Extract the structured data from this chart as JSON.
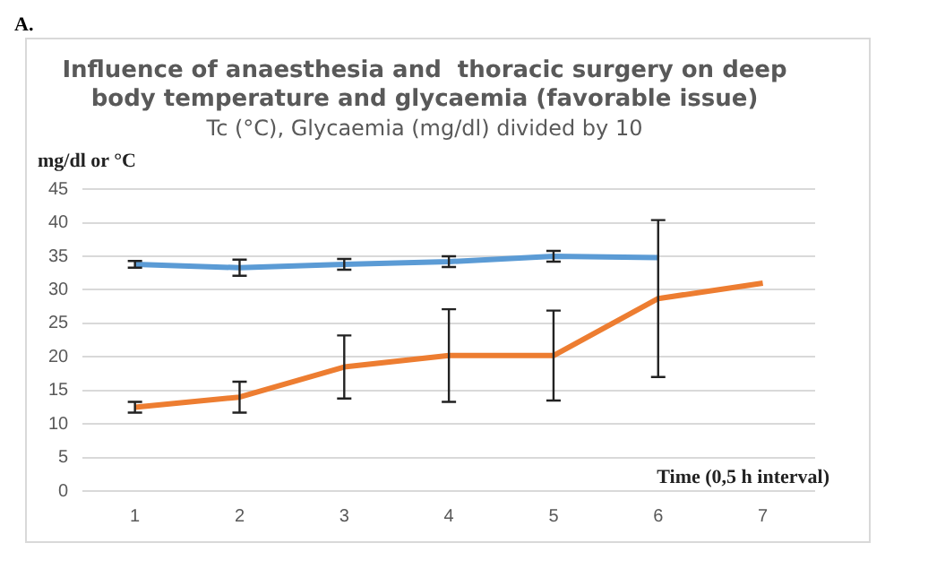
{
  "chart_data": {
    "type": "line",
    "title": [
      "Influence of anaesthesia and  thoracic surgery on deep",
      "body temperature and glycaemia (favorable issue)"
    ],
    "subtitle": "Tc (°C), Glycaemia (mg/dl) divided by 10",
    "annotations": [
      "A."
    ],
    "ylabel": "mg/dl or °C",
    "xlabel": "Time (0,5 h interval)",
    "categories": [
      "1",
      "2",
      "3",
      "4",
      "5",
      "6",
      "7"
    ],
    "series": [
      {
        "color": "#5b9bd5",
        "values": [
          33.8,
          33.3,
          33.8,
          34.2,
          35,
          34.8,
          null
        ],
        "errors": [
          0.5,
          1.2,
          0.8,
          0.8,
          0.8,
          null,
          null
        ]
      },
      {
        "color": "#ed7d31",
        "values": [
          12.5,
          14,
          18.5,
          20.2,
          20.2,
          28.7,
          31
        ],
        "errors": [
          0.8,
          2.3,
          4.7,
          6.9,
          6.7,
          11.7,
          null
        ]
      }
    ],
    "ylim": [
      0,
      45
    ],
    "yticks": [
      0,
      5,
      10,
      15,
      20,
      25,
      30,
      35,
      40,
      45
    ],
    "grid": "y",
    "legend": false,
    "line_style": "solid"
  }
}
